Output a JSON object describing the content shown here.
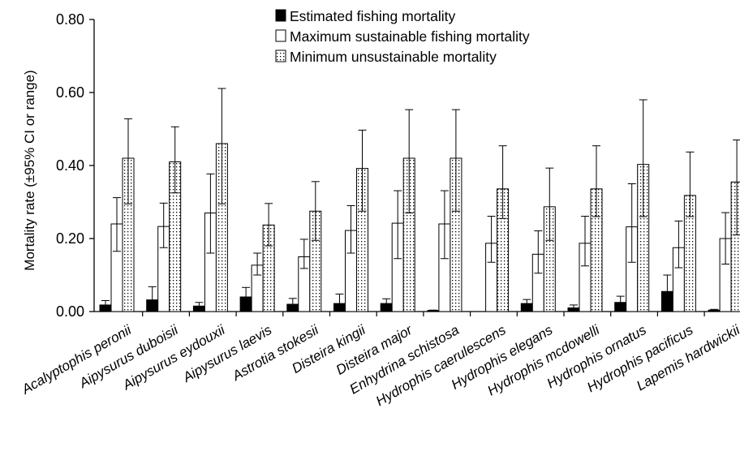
{
  "chart_data": {
    "type": "bar",
    "title": "",
    "xlabel": "",
    "ylabel": "Mortality rate (±95% CI or range)",
    "ylim": [
      0,
      0.8
    ],
    "yticks": [
      "0.00",
      "0.20",
      "0.40",
      "0.60",
      "0.80"
    ],
    "grid": false,
    "legend_position": "top-center",
    "categories": [
      "Acalyptophis peronii",
      "Aipysurus duboisii",
      "Aipysurus eydouxii",
      "Aipysurus laevis",
      "Astrotia stokesii",
      "Disteira kingii",
      "Disteira major",
      "Enhydrina schistosa",
      "Hydrophis caerulescens",
      "Hydrophis elegans",
      "Hydrophis mcdowelli",
      "Hydrophis ornatus",
      "Hydrophis pacificus",
      "Lapemis hardwickii"
    ],
    "series": [
      {
        "name": "Estimated fishing mortality",
        "fill": "#000000",
        "values": [
          0.018,
          0.032,
          0.015,
          0.04,
          0.02,
          0.022,
          0.022,
          0.003,
          0.0,
          0.022,
          0.01,
          0.025,
          0.055,
          0.004
        ],
        "error_upper": [
          0.03,
          0.068,
          0.025,
          0.066,
          0.036,
          0.048,
          0.035,
          0.004,
          0.0,
          0.033,
          0.018,
          0.042,
          0.1,
          0.006
        ]
      },
      {
        "name": "Maximum sustainable fishing mortality",
        "fill": "#ffffff",
        "values": [
          0.24,
          0.233,
          0.27,
          0.127,
          0.15,
          0.222,
          0.242,
          0.24,
          0.187,
          0.157,
          0.187,
          0.232,
          0.175,
          0.2
        ],
        "error_lower": [
          0.165,
          0.175,
          0.16,
          0.1,
          0.118,
          0.16,
          0.145,
          0.145,
          0.135,
          0.105,
          0.125,
          0.135,
          0.12,
          0.13
        ],
        "error_upper": [
          0.312,
          0.297,
          0.377,
          0.16,
          0.198,
          0.29,
          0.331,
          0.331,
          0.261,
          0.221,
          0.261,
          0.35,
          0.248,
          0.271
        ]
      },
      {
        "name": "Minimum unsustainable mortality",
        "fill": "dotted",
        "values": [
          0.42,
          0.41,
          0.46,
          0.237,
          0.275,
          0.392,
          0.42,
          0.42,
          0.336,
          0.287,
          0.336,
          0.403,
          0.318,
          0.355
        ],
        "error_lower": [
          0.295,
          0.325,
          0.295,
          0.18,
          0.195,
          0.275,
          0.27,
          0.275,
          0.255,
          0.195,
          0.26,
          0.26,
          0.26,
          0.21
        ],
        "error_upper": [
          0.528,
          0.506,
          0.611,
          0.296,
          0.356,
          0.497,
          0.553,
          0.553,
          0.454,
          0.393,
          0.454,
          0.58,
          0.437,
          0.47
        ]
      }
    ]
  }
}
